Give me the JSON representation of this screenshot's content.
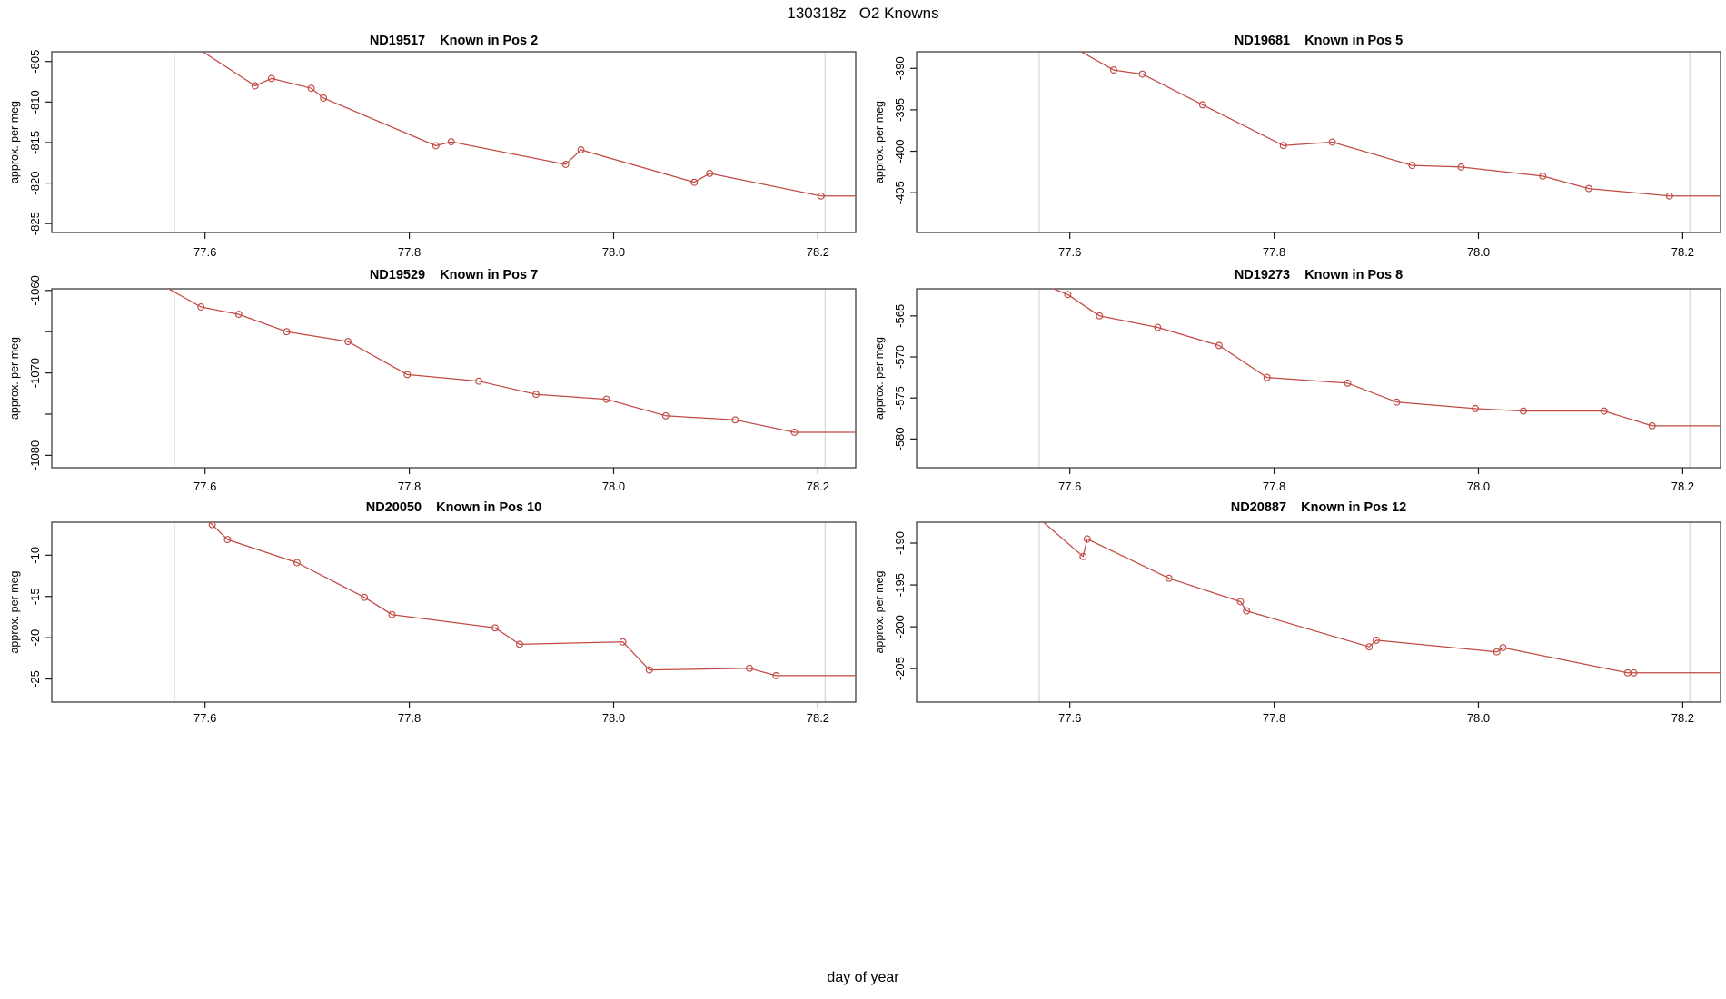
{
  "page": {
    "title": "130318z   O2 Knowns",
    "xlabel": "day of year",
    "ylabel": "approx. per meg"
  },
  "style": {
    "series_color": "#c14a44",
    "vline_color": "#d8d8d8",
    "box_color": "#3f3f3f",
    "tick_color": "#1a1a1a",
    "text_color": "#000000"
  },
  "axes": {
    "xlim": [
      77.45,
      78.237
    ],
    "xticks": [
      {
        "v": 77.6,
        "label": "77.6"
      },
      {
        "v": 77.8,
        "label": "77.8"
      },
      {
        "v": 78.0,
        "label": "78.0"
      },
      {
        "v": 78.2,
        "label": "78.2"
      }
    ],
    "vlines": [
      77.57,
      78.207
    ]
  },
  "chart_data": [
    {
      "type": "line",
      "id_label": "ND19517",
      "pos_label": "Known in Pos 2",
      "col": 0,
      "row": 0,
      "ylim": [
        -826.1,
        -803.8
      ],
      "yticks": [
        {
          "v": -805,
          "label": "-805"
        },
        {
          "v": -810,
          "label": "-810"
        },
        {
          "v": -815,
          "label": "-815"
        },
        {
          "v": -820,
          "label": "-820"
        },
        {
          "v": -825,
          "label": "-825"
        }
      ],
      "enter": [
        77.57,
        -801.5
      ],
      "points": [
        [
          77.649,
          -808.0
        ],
        [
          77.665,
          -807.1
        ],
        [
          77.704,
          -808.3
        ],
        [
          77.716,
          -809.5
        ],
        [
          77.826,
          -815.4
        ],
        [
          77.841,
          -814.9
        ],
        [
          77.953,
          -817.7
        ],
        [
          77.968,
          -815.9
        ],
        [
          78.079,
          -819.9
        ],
        [
          78.094,
          -818.8
        ],
        [
          78.203,
          -821.6
        ]
      ],
      "tail_x": 78.237
    },
    {
      "type": "line",
      "id_label": "ND19681",
      "pos_label": "Known in Pos 5",
      "col": 1,
      "row": 0,
      "ylim": [
        -409.8,
        -388.0
      ],
      "yticks": [
        {
          "v": -390,
          "label": "-390"
        },
        {
          "v": -395,
          "label": "-395"
        },
        {
          "v": -400,
          "label": "-400"
        },
        {
          "v": -405,
          "label": "-405"
        }
      ],
      "enter": [
        77.575,
        -385.5
      ],
      "points": [
        [
          77.643,
          -390.2
        ],
        [
          77.671,
          -390.7
        ],
        [
          77.73,
          -394.4
        ],
        [
          77.809,
          -399.3
        ],
        [
          77.857,
          -398.9
        ],
        [
          77.935,
          -401.7
        ],
        [
          77.983,
          -401.9
        ],
        [
          78.063,
          -403.0
        ],
        [
          78.108,
          -404.5
        ],
        [
          78.187,
          -405.4
        ]
      ],
      "tail_x": 78.237
    },
    {
      "type": "line",
      "id_label": "ND19529",
      "pos_label": "Known in Pos 7",
      "col": 0,
      "row": 1,
      "ylim": [
        -1081.5,
        -1059.8
      ],
      "yticks": [
        {
          "v": -1060,
          "label": "-1060"
        },
        {
          "v": -1065,
          "label": ""
        },
        {
          "v": -1070,
          "label": "-1070"
        },
        {
          "v": -1075,
          "label": ""
        },
        {
          "v": -1080,
          "label": "-1080"
        }
      ],
      "enter": [
        77.55,
        -1058.8
      ],
      "points": [
        [
          77.596,
          -1062.0
        ],
        [
          77.633,
          -1062.9
        ],
        [
          77.68,
          -1065.0
        ],
        [
          77.74,
          -1066.2
        ],
        [
          77.798,
          -1070.2
        ],
        [
          77.868,
          -1071.0
        ],
        [
          77.924,
          -1072.6
        ],
        [
          77.993,
          -1073.2
        ],
        [
          78.051,
          -1075.2
        ],
        [
          78.119,
          -1075.7
        ],
        [
          78.177,
          -1077.2
        ]
      ],
      "tail_x": 78.237
    },
    {
      "type": "line",
      "id_label": "ND19273",
      "pos_label": "Known in Pos 8",
      "col": 1,
      "row": 1,
      "ylim": [
        -583.5,
        -561.7
      ],
      "yticks": [
        {
          "v": -565,
          "label": "-565"
        },
        {
          "v": -570,
          "label": "-570"
        },
        {
          "v": -575,
          "label": "-575"
        },
        {
          "v": -580,
          "label": "-580"
        }
      ],
      "enter": [
        77.57,
        -561.0
      ],
      "points": [
        [
          77.598,
          -562.4
        ],
        [
          77.629,
          -565.0
        ],
        [
          77.686,
          -566.4
        ],
        [
          77.746,
          -568.6
        ],
        [
          77.793,
          -572.5
        ],
        [
          77.872,
          -573.2
        ],
        [
          77.92,
          -575.5
        ],
        [
          77.997,
          -576.3
        ],
        [
          78.044,
          -576.6
        ],
        [
          78.123,
          -576.6
        ],
        [
          78.17,
          -578.4
        ]
      ],
      "tail_x": 78.237
    },
    {
      "type": "line",
      "id_label": "ND20050",
      "pos_label": "Known in Pos 10",
      "col": 0,
      "row": 2,
      "ylim": [
        -27.8,
        -6.0
      ],
      "yticks": [
        {
          "v": -10,
          "label": "-10"
        },
        {
          "v": -15,
          "label": "-15"
        },
        {
          "v": -20,
          "label": "-20"
        },
        {
          "v": -25,
          "label": "-25"
        }
      ],
      "enter": [
        77.59,
        -4.5
      ],
      "points": [
        [
          77.607,
          -6.3
        ],
        [
          77.622,
          -8.1
        ],
        [
          77.69,
          -10.9
        ],
        [
          77.756,
          -15.1
        ],
        [
          77.783,
          -17.2
        ],
        [
          77.884,
          -18.8
        ],
        [
          77.908,
          -20.8
        ],
        [
          78.009,
          -20.5
        ],
        [
          78.035,
          -23.9
        ],
        [
          78.133,
          -23.7
        ],
        [
          78.159,
          -24.6
        ]
      ],
      "tail_x": 78.237
    },
    {
      "type": "line",
      "id_label": "ND20887",
      "pos_label": "Known in Pos 12",
      "col": 1,
      "row": 2,
      "ylim": [
        -209.0,
        -187.5
      ],
      "yticks": [
        {
          "v": -190,
          "label": "-190"
        },
        {
          "v": -195,
          "label": "-195"
        },
        {
          "v": -200,
          "label": "-200"
        },
        {
          "v": -205,
          "label": "-205"
        }
      ],
      "enter": [
        77.56,
        -186.0
      ],
      "points": [
        [
          77.613,
          -191.6
        ],
        [
          77.617,
          -189.5
        ],
        [
          77.697,
          -194.2
        ],
        [
          77.767,
          -197.0
        ],
        [
          77.773,
          -198.1
        ],
        [
          77.893,
          -202.4
        ],
        [
          77.9,
          -201.6
        ],
        [
          78.018,
          -203.0
        ],
        [
          78.024,
          -202.5
        ],
        [
          78.146,
          -205.5
        ],
        [
          78.152,
          -205.5
        ]
      ],
      "tail_x": 78.237
    }
  ]
}
